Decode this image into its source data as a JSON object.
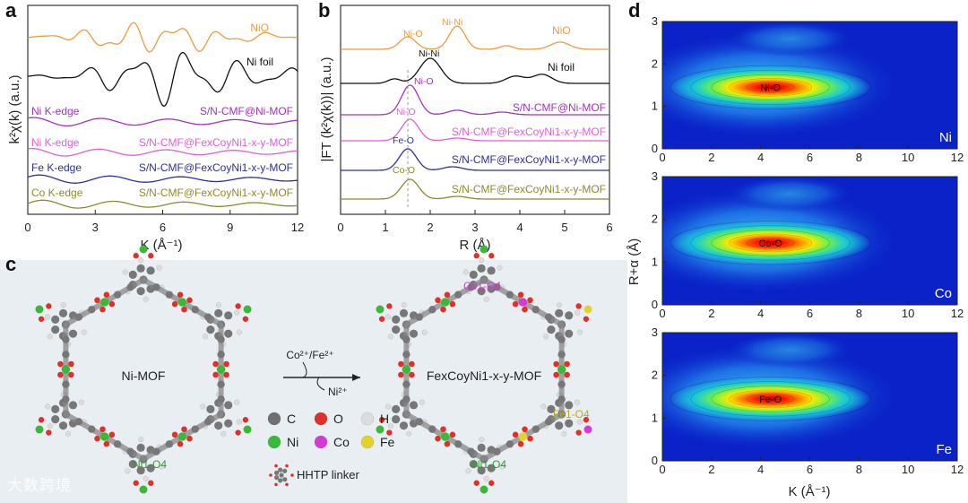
{
  "panels": {
    "a": {
      "letter": "a",
      "ylabel": "k²χ(k) (a.u.)",
      "xlabel": "K (Å⁻¹)",
      "xticks": [
        "0",
        "3",
        "6",
        "9",
        "12"
      ],
      "left_labels": [
        "Ni K-edge",
        "Ni K-edge",
        "Fe K-edge",
        "Co K-edge"
      ],
      "right_labels": [
        "NiO",
        "Ni foil",
        "S/N-CMF@Ni-MOF",
        "S/N-CMF@FexCoyNi1-x-y-MOF",
        "S/N-CMF@FexCoyNi1-x-y-MOF",
        "S/N-CMF@FexCoyNi1-x-y-MOF"
      ]
    },
    "b": {
      "letter": "b",
      "ylabel": "|FT (k²χ(k))| (a.u.)",
      "xlabel": "R (Å)",
      "xticks": [
        "0",
        "1",
        "2",
        "3",
        "4",
        "5",
        "6"
      ],
      "peak_labels": [
        "Ni-O",
        "Ni-Ni",
        "NiO",
        "Ni-Ni",
        "Ni foil",
        "Ni-O",
        "Ni-O",
        "Fe-O",
        "Co-O"
      ],
      "right_labels": [
        "S/N-CMF@Ni-MOF",
        "S/N-CMF@FexCoyNi1-x-y-MOF",
        "S/N-CMF@FexCoyNi1-x-y-MOF",
        "S/N-CMF@FexCoyNi1-x-y-MOF"
      ]
    },
    "c": {
      "letter": "c",
      "left_center": "Ni-MOF",
      "right_center": "FexCoyNi1-x-y-MOF",
      "arrow_top": "Co²⁺/Fe²⁺",
      "arrow_bottom": "Ni²⁺",
      "site_labels": [
        "Co1-O4",
        "Fe1-O4",
        "Ni1-O4",
        "Ni1-O4"
      ],
      "legend": [
        {
          "name": "C",
          "color": "#707070"
        },
        {
          "name": "O",
          "color": "#e0302a"
        },
        {
          "name": "H",
          "color": "#dcdcdc"
        },
        {
          "name": "Ni",
          "color": "#39b83a"
        },
        {
          "name": "Co",
          "color": "#d63ad6"
        },
        {
          "name": "Fe",
          "color": "#e3d12c"
        }
      ],
      "linker_label": "HHTP linker",
      "watermark": "大数跨境"
    },
    "d": {
      "letter": "d",
      "ylabel": "R+α (Å)",
      "xlabel": "K (Å⁻¹)",
      "xticks": [
        "0",
        "2",
        "4",
        "6",
        "8",
        "10",
        "12"
      ],
      "yticks": [
        "0",
        "1",
        "2",
        "3"
      ],
      "maps": [
        {
          "element": "Ni",
          "bond": "Ni-O"
        },
        {
          "element": "Co",
          "bond": "Co-O"
        },
        {
          "element": "Fe",
          "bond": "Fe-O"
        }
      ]
    }
  },
  "colors": {
    "nio": "#ee9b3c",
    "foil": "#111111",
    "ni_mof": "#a431c4",
    "fecoNi_ni": "#e25ed8",
    "fe": "#2b2fa3",
    "co": "#8c8a2a",
    "panel_c_bg": "#e9eef3",
    "map_bg": "#0a22c8"
  }
}
